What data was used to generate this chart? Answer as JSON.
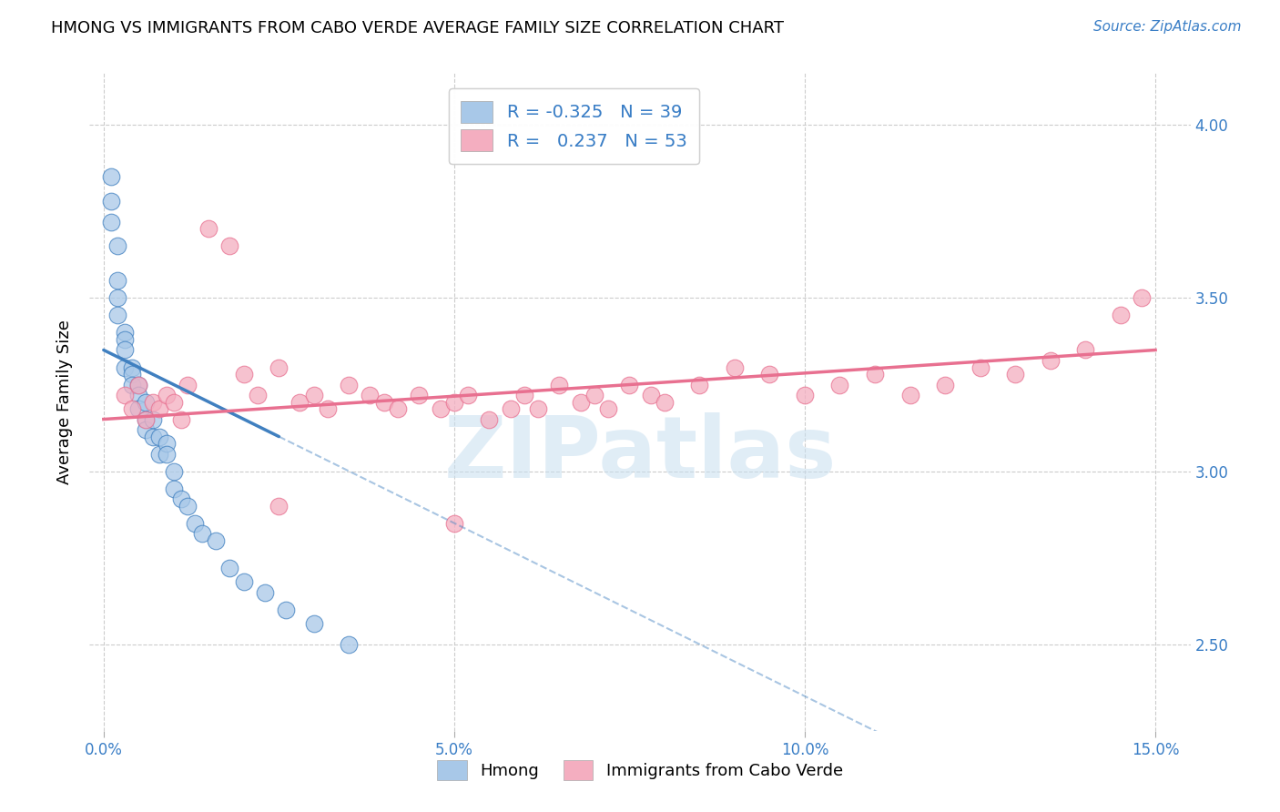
{
  "title": "HMONG VS IMMIGRANTS FROM CABO VERDE AVERAGE FAMILY SIZE CORRELATION CHART",
  "source": "Source: ZipAtlas.com",
  "ylabel": "Average Family Size",
  "xlabel_ticks": [
    "0.0%",
    "5.0%",
    "10.0%",
    "15.0%"
  ],
  "xlabel_tick_vals": [
    0.0,
    0.05,
    0.1,
    0.15
  ],
  "ylabel_ticks": [
    2.5,
    3.0,
    3.5,
    4.0
  ],
  "xlim": [
    -0.002,
    0.155
  ],
  "ylim": [
    2.25,
    4.15
  ],
  "legend_label1": "Hmong",
  "legend_label2": "Immigrants from Cabo Verde",
  "r1": -0.325,
  "n1": 39,
  "r2": 0.237,
  "n2": 53,
  "color_hmong": "#a8c8e8",
  "color_cabo": "#f4aec0",
  "color_hmong_line": "#4080c0",
  "color_cabo_line": "#e87090",
  "watermark": "ZIPatlas",
  "hmong_x": [
    0.001,
    0.001,
    0.001,
    0.002,
    0.002,
    0.002,
    0.002,
    0.003,
    0.003,
    0.003,
    0.003,
    0.004,
    0.004,
    0.004,
    0.005,
    0.005,
    0.005,
    0.006,
    0.006,
    0.006,
    0.007,
    0.007,
    0.008,
    0.008,
    0.009,
    0.009,
    0.01,
    0.01,
    0.011,
    0.012,
    0.013,
    0.014,
    0.016,
    0.018,
    0.02,
    0.023,
    0.026,
    0.03,
    0.035
  ],
  "hmong_y": [
    3.85,
    3.78,
    3.72,
    3.65,
    3.55,
    3.5,
    3.45,
    3.4,
    3.38,
    3.35,
    3.3,
    3.3,
    3.28,
    3.25,
    3.25,
    3.22,
    3.18,
    3.2,
    3.15,
    3.12,
    3.15,
    3.1,
    3.1,
    3.05,
    3.08,
    3.05,
    3.0,
    2.95,
    2.92,
    2.9,
    2.85,
    2.82,
    2.8,
    2.72,
    2.68,
    2.65,
    2.6,
    2.56,
    2.5
  ],
  "cabo_x": [
    0.003,
    0.004,
    0.005,
    0.006,
    0.007,
    0.008,
    0.009,
    0.01,
    0.011,
    0.012,
    0.015,
    0.018,
    0.02,
    0.022,
    0.025,
    0.028,
    0.03,
    0.032,
    0.035,
    0.038,
    0.04,
    0.042,
    0.045,
    0.048,
    0.05,
    0.052,
    0.055,
    0.058,
    0.06,
    0.062,
    0.065,
    0.068,
    0.07,
    0.072,
    0.075,
    0.078,
    0.08,
    0.085,
    0.09,
    0.095,
    0.1,
    0.105,
    0.11,
    0.115,
    0.12,
    0.125,
    0.13,
    0.135,
    0.14,
    0.145,
    0.148,
    0.025,
    0.05
  ],
  "cabo_y": [
    3.22,
    3.18,
    3.25,
    3.15,
    3.2,
    3.18,
    3.22,
    3.2,
    3.15,
    3.25,
    3.7,
    3.65,
    3.28,
    3.22,
    3.3,
    3.2,
    3.22,
    3.18,
    3.25,
    3.22,
    3.2,
    3.18,
    3.22,
    3.18,
    3.2,
    3.22,
    3.15,
    3.18,
    3.22,
    3.18,
    3.25,
    3.2,
    3.22,
    3.18,
    3.25,
    3.22,
    3.2,
    3.25,
    3.3,
    3.28,
    3.22,
    3.25,
    3.28,
    3.22,
    3.25,
    3.3,
    3.28,
    3.32,
    3.35,
    3.45,
    3.5,
    2.9,
    2.85
  ]
}
